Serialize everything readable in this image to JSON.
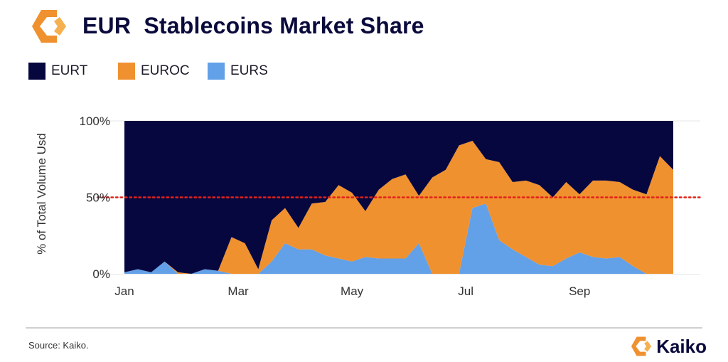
{
  "header": {
    "title": "EUR  Stablecoins Market Share"
  },
  "colors": {
    "navy": "#07073f",
    "orange": "#f0912f",
    "blue": "#62a0e8",
    "ref_line": "#e32119"
  },
  "legend": [
    {
      "name": "EURT",
      "color": "#07073f"
    },
    {
      "name": "EUROC",
      "color": "#f0912f"
    },
    {
      "name": "EURS",
      "color": "#62a0e8"
    }
  ],
  "footer": {
    "source": "Source: Kaiko.",
    "brand": "Kaiko"
  },
  "chart_data": {
    "type": "area",
    "stacked": true,
    "ylabel": "% of Total Volume Usd",
    "xlabel": "",
    "ylim": [
      0,
      100
    ],
    "y_ticks": [
      "0%",
      "50%",
      "100%"
    ],
    "x_ticks": [
      {
        "label": "Jan",
        "week": 0
      },
      {
        "label": "Mar",
        "week": 8.5
      },
      {
        "label": "May",
        "week": 17
      },
      {
        "label": "Jul",
        "week": 25.5
      },
      {
        "label": "Sep",
        "week": 34
      }
    ],
    "reference_line": {
      "y": 50,
      "style": "dotted"
    },
    "grid": false,
    "legend_position": "top-left",
    "series": [
      {
        "name": "EURS",
        "values": [
          1,
          3,
          1,
          8,
          0,
          0,
          3,
          2,
          0,
          0,
          0,
          8,
          20,
          16,
          16,
          12,
          10,
          8,
          11,
          10,
          10,
          10,
          20,
          0,
          0,
          0,
          43,
          46,
          22,
          16,
          11,
          6,
          5,
          10,
          14,
          11,
          10,
          11,
          5,
          0,
          0,
          0
        ]
      },
      {
        "name": "EUROC",
        "values": [
          0,
          0,
          0,
          0,
          1,
          0,
          0,
          0,
          24,
          20,
          3,
          27,
          23,
          14,
          30,
          35,
          48,
          45,
          30,
          45,
          52,
          55,
          31,
          63,
          68,
          84,
          44,
          29,
          51,
          44,
          50,
          52,
          45,
          50,
          38,
          50,
          51,
          49,
          50,
          52,
          77,
          68
        ]
      },
      {
        "name": "EURT",
        "values": [
          99,
          97,
          99,
          92,
          99,
          100,
          97,
          98,
          76,
          80,
          97,
          65,
          57,
          70,
          54,
          53,
          42,
          47,
          59,
          45,
          38,
          35,
          49,
          37,
          32,
          16,
          13,
          25,
          27,
          40,
          39,
          42,
          50,
          40,
          48,
          39,
          39,
          40,
          45,
          48,
          23,
          32
        ]
      }
    ]
  }
}
